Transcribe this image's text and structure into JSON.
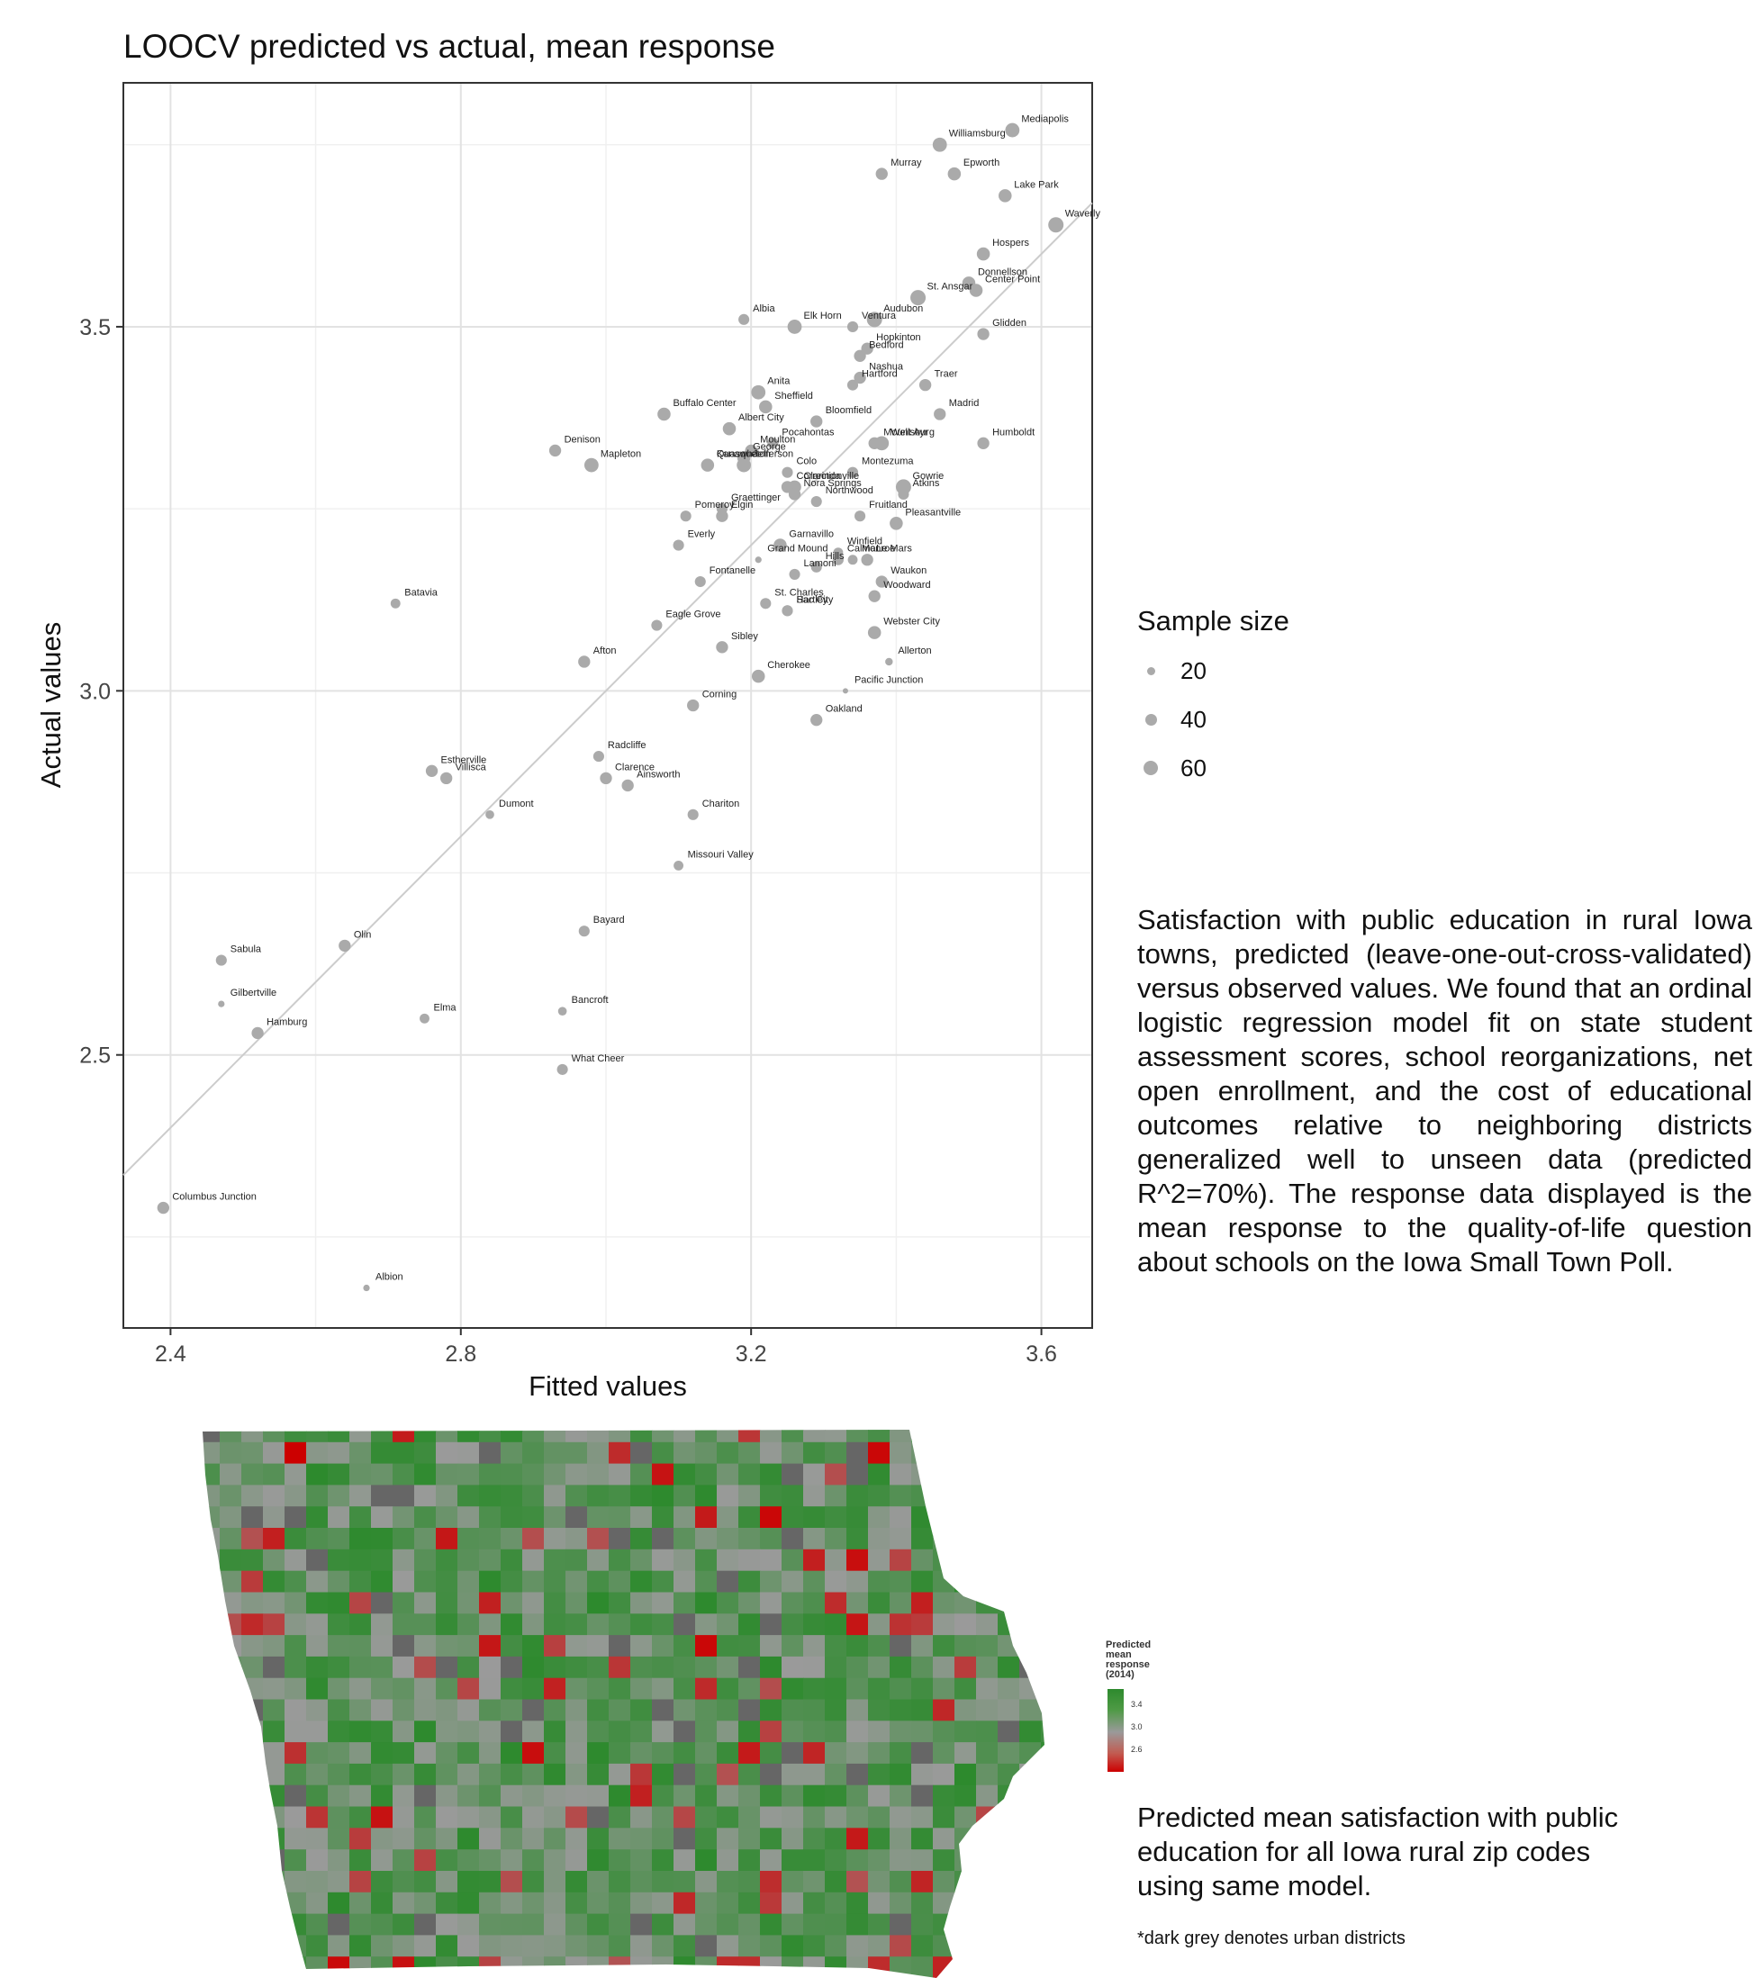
{
  "chart_data": {
    "type": "scatter",
    "title": "LOOCV predicted vs actual, mean response",
    "xlabel": "Fitted values",
    "ylabel": "Actual values",
    "xlim": [
      2.335,
      3.67
    ],
    "ylim": [
      2.125,
      3.835
    ],
    "x_ticks": [
      2.4,
      2.8,
      3.2,
      3.6
    ],
    "y_ticks": [
      2.5,
      3.0,
      3.5
    ],
    "x_tick_labels": [
      "2.4",
      "2.8",
      "3.2",
      "3.6"
    ],
    "y_tick_labels": [
      "2.5",
      "3.0",
      "3.5"
    ],
    "grid": true,
    "reference_line": "y = x",
    "legend": {
      "title": "Sample size",
      "placement": "right",
      "entries": [
        20,
        40,
        60
      ]
    },
    "points": [
      {
        "label": "Mediapolis",
        "x": 3.56,
        "y": 3.77,
        "n": 55
      },
      {
        "label": "Williamsburg",
        "x": 3.46,
        "y": 3.75,
        "n": 55
      },
      {
        "label": "Murray",
        "x": 3.38,
        "y": 3.71,
        "n": 45
      },
      {
        "label": "Epworth",
        "x": 3.48,
        "y": 3.71,
        "n": 50
      },
      {
        "label": "Lake Park",
        "x": 3.55,
        "y": 3.68,
        "n": 50
      },
      {
        "label": "Waverly",
        "x": 3.62,
        "y": 3.64,
        "n": 60
      },
      {
        "label": "Hospers",
        "x": 3.52,
        "y": 3.6,
        "n": 50
      },
      {
        "label": "Donnellson",
        "x": 3.5,
        "y": 3.56,
        "n": 50
      },
      {
        "label": "St. Ansgar",
        "x": 3.43,
        "y": 3.54,
        "n": 60
      },
      {
        "label": "Center Point",
        "x": 3.51,
        "y": 3.55,
        "n": 50
      },
      {
        "label": "Albia",
        "x": 3.19,
        "y": 3.51,
        "n": 40
      },
      {
        "label": "Ventura",
        "x": 3.34,
        "y": 3.5,
        "n": 40
      },
      {
        "label": "Audubon",
        "x": 3.37,
        "y": 3.51,
        "n": 60
      },
      {
        "label": "Elk Horn",
        "x": 3.26,
        "y": 3.5,
        "n": 55
      },
      {
        "label": "Hopkinton",
        "x": 3.36,
        "y": 3.47,
        "n": 45
      },
      {
        "label": "Bedford",
        "x": 3.35,
        "y": 3.46,
        "n": 45
      },
      {
        "label": "Glidden",
        "x": 3.52,
        "y": 3.49,
        "n": 45
      },
      {
        "label": "Anita",
        "x": 3.21,
        "y": 3.41,
        "n": 55
      },
      {
        "label": "Hartford",
        "x": 3.34,
        "y": 3.42,
        "n": 40
      },
      {
        "label": "Nashua",
        "x": 3.35,
        "y": 3.43,
        "n": 45
      },
      {
        "label": "Traer",
        "x": 3.44,
        "y": 3.42,
        "n": 45
      },
      {
        "label": "Pocahontas",
        "x": 3.23,
        "y": 3.34,
        "n": 40
      },
      {
        "label": "Sheffield",
        "x": 3.22,
        "y": 3.39,
        "n": 50
      },
      {
        "label": "Bloomfield",
        "x": 3.29,
        "y": 3.37,
        "n": 45
      },
      {
        "label": "Wellsburg",
        "x": 3.38,
        "y": 3.34,
        "n": 55
      },
      {
        "label": "Madrid",
        "x": 3.46,
        "y": 3.38,
        "n": 45
      },
      {
        "label": "Humboldt",
        "x": 3.52,
        "y": 3.34,
        "n": 45
      },
      {
        "label": "Buffalo Center",
        "x": 3.08,
        "y": 3.38,
        "n": 50
      },
      {
        "label": "Albert City",
        "x": 3.17,
        "y": 3.36,
        "n": 50
      },
      {
        "label": "Moulton",
        "x": 3.2,
        "y": 3.33,
        "n": 45
      },
      {
        "label": "Colo",
        "x": 3.25,
        "y": 3.3,
        "n": 40
      },
      {
        "label": "Mount Ayr",
        "x": 3.37,
        "y": 3.34,
        "n": 45
      },
      {
        "label": "Denison",
        "x": 2.93,
        "y": 3.33,
        "n": 45
      },
      {
        "label": "Quasqueton",
        "x": 3.14,
        "y": 3.31,
        "n": 45
      },
      {
        "label": "George",
        "x": 3.19,
        "y": 3.32,
        "n": 50
      },
      {
        "label": "Clarinda",
        "x": 3.26,
        "y": 3.28,
        "n": 50
      },
      {
        "label": "Mapleton",
        "x": 2.98,
        "y": 3.31,
        "n": 55
      },
      {
        "label": "Kanawha",
        "x": 3.14,
        "y": 3.31,
        "n": 50
      },
      {
        "label": "Jefferson",
        "x": 3.19,
        "y": 3.31,
        "n": 55
      },
      {
        "label": "Montezuma",
        "x": 3.34,
        "y": 3.3,
        "n": 40
      },
      {
        "label": "Gowrie",
        "x": 3.41,
        "y": 3.28,
        "n": 60
      },
      {
        "label": "Graettinger",
        "x": 3.16,
        "y": 3.25,
        "n": 40
      },
      {
        "label": "Elgin",
        "x": 3.16,
        "y": 3.24,
        "n": 45
      },
      {
        "label": "Correctionville",
        "x": 3.25,
        "y": 3.28,
        "n": 45
      },
      {
        "label": "Nora Springs",
        "x": 3.26,
        "y": 3.27,
        "n": 45
      },
      {
        "label": "Northwood",
        "x": 3.29,
        "y": 3.26,
        "n": 40
      },
      {
        "label": "Atkins",
        "x": 3.41,
        "y": 3.27,
        "n": 40
      },
      {
        "label": "Pomeroy",
        "x": 3.11,
        "y": 3.24,
        "n": 40
      },
      {
        "label": "Fruitland",
        "x": 3.35,
        "y": 3.24,
        "n": 40
      },
      {
        "label": "Pleasantville",
        "x": 3.4,
        "y": 3.23,
        "n": 50
      },
      {
        "label": "Garnavillo",
        "x": 3.24,
        "y": 3.2,
        "n": 50
      },
      {
        "label": "Winfield",
        "x": 3.32,
        "y": 3.19,
        "n": 35
      },
      {
        "label": "Everly",
        "x": 3.1,
        "y": 3.2,
        "n": 40
      },
      {
        "label": "Calmar",
        "x": 3.32,
        "y": 3.18,
        "n": 40
      },
      {
        "label": "Grand Mound",
        "x": 3.21,
        "y": 3.18,
        "n": 20
      },
      {
        "label": "Le Mars",
        "x": 3.36,
        "y": 3.18,
        "n": 45
      },
      {
        "label": "Fontanelle",
        "x": 3.13,
        "y": 3.15,
        "n": 40
      },
      {
        "label": "Lamoni",
        "x": 3.26,
        "y": 3.16,
        "n": 40
      },
      {
        "label": "Hills",
        "x": 3.29,
        "y": 3.17,
        "n": 40
      },
      {
        "label": "Monroe",
        "x": 3.34,
        "y": 3.18,
        "n": 35
      },
      {
        "label": "Waukon",
        "x": 3.38,
        "y": 3.15,
        "n": 45
      },
      {
        "label": "Batavia",
        "x": 2.71,
        "y": 3.12,
        "n": 35
      },
      {
        "label": "Eagle Grove",
        "x": 3.07,
        "y": 3.09,
        "n": 40
      },
      {
        "label": "St. Charles",
        "x": 3.22,
        "y": 3.12,
        "n": 40
      },
      {
        "label": "Sac City",
        "x": 3.25,
        "y": 3.11,
        "n": 40
      },
      {
        "label": "Woodward",
        "x": 3.37,
        "y": 3.13,
        "n": 45
      },
      {
        "label": "Hartley",
        "x": 3.25,
        "y": 3.11,
        "n": 40
      },
      {
        "label": "Webster City",
        "x": 3.37,
        "y": 3.08,
        "n": 50
      },
      {
        "label": "Afton",
        "x": 2.97,
        "y": 3.04,
        "n": 45
      },
      {
        "label": "Sibley",
        "x": 3.16,
        "y": 3.06,
        "n": 45
      },
      {
        "label": "Allerton",
        "x": 3.39,
        "y": 3.04,
        "n": 25
      },
      {
        "label": "Cherokee",
        "x": 3.21,
        "y": 3.02,
        "n": 50
      },
      {
        "label": "Pacific Junction",
        "x": 3.33,
        "y": 3.0,
        "n": 15
      },
      {
        "label": "Corning",
        "x": 3.12,
        "y": 2.98,
        "n": 45
      },
      {
        "label": "Oakland",
        "x": 3.29,
        "y": 2.96,
        "n": 45
      },
      {
        "label": "Radcliffe",
        "x": 2.99,
        "y": 2.91,
        "n": 40
      },
      {
        "label": "Estherville",
        "x": 2.76,
        "y": 2.89,
        "n": 45
      },
      {
        "label": "Villisca",
        "x": 2.78,
        "y": 2.88,
        "n": 45
      },
      {
        "label": "Clarence",
        "x": 3.0,
        "y": 2.88,
        "n": 45
      },
      {
        "label": "Ainsworth",
        "x": 3.03,
        "y": 2.87,
        "n": 45
      },
      {
        "label": "Dumont",
        "x": 2.84,
        "y": 2.83,
        "n": 30
      },
      {
        "label": "Chariton",
        "x": 3.12,
        "y": 2.83,
        "n": 40
      },
      {
        "label": "Missouri Valley",
        "x": 3.1,
        "y": 2.76,
        "n": 35
      },
      {
        "label": "Olin",
        "x": 2.64,
        "y": 2.65,
        "n": 45
      },
      {
        "label": "Bayard",
        "x": 2.97,
        "y": 2.67,
        "n": 40
      },
      {
        "label": "Sabula",
        "x": 2.47,
        "y": 2.63,
        "n": 40
      },
      {
        "label": "Gilbertville",
        "x": 2.47,
        "y": 2.57,
        "n": 20
      },
      {
        "label": "Hamburg",
        "x": 2.52,
        "y": 2.53,
        "n": 45
      },
      {
        "label": "Elma",
        "x": 2.75,
        "y": 2.55,
        "n": 35
      },
      {
        "label": "Bancroft",
        "x": 2.94,
        "y": 2.56,
        "n": 30
      },
      {
        "label": "What Cheer",
        "x": 2.94,
        "y": 2.48,
        "n": 40
      },
      {
        "label": "Columbus Junction",
        "x": 2.39,
        "y": 2.29,
        "n": 45
      },
      {
        "label": "Albion",
        "x": 2.67,
        "y": 2.18,
        "n": 20
      }
    ]
  },
  "caption": "Satisfaction with public education in rural Iowa towns, predicted (leave-one-out-cross-validated) versus observed values. We found that an ordinal logistic regression model fit on state student assessment scores, school reorganizations, net open enrollment, and the cost of educational outcomes relative to neighboring districts generalized well to unseen data (predicted R^2=70%). The response data displayed is the mean response to the quality-of-life question about schools on the Iowa Small Town Poll.",
  "map": {
    "legend_title": "Predicted\nmean\nresponse\n(2014)",
    "legend_ticks": [
      "3.4",
      "3.0",
      "2.6"
    ],
    "colors": {
      "high": "#2d8a2d",
      "mid": "#9a9a9a",
      "low": "#cc0000",
      "urban": "#666666"
    }
  },
  "map_caption": "Predicted mean satisfaction with public education for all Iowa rural zip codes using same model.",
  "footnote": "*dark grey denotes urban districts"
}
